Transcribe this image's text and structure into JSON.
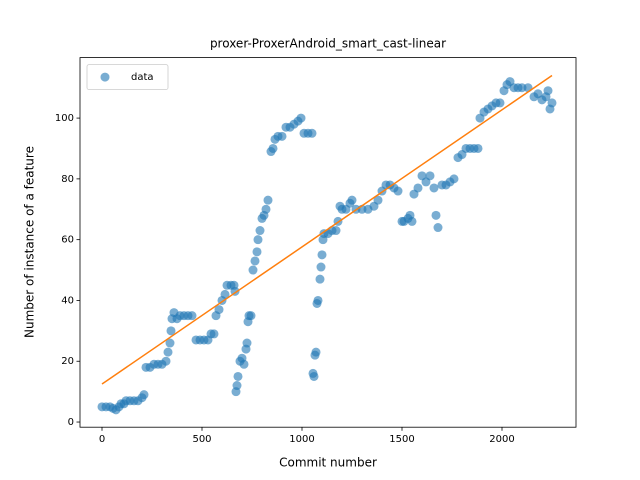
{
  "chart_data": {
    "type": "scatter",
    "title": "proxer-ProxerAndroid_smart_cast-linear",
    "xlabel": "Commit number",
    "ylabel": "Number of instance of a feature",
    "legend": "upper left",
    "xlim": [
      -110,
      2370
    ],
    "ylim": [
      -1.7,
      119.9
    ],
    "xticks": [
      0,
      500,
      1000,
      1500,
      2000
    ],
    "yticks": [
      0,
      20,
      40,
      60,
      80,
      100
    ],
    "series": [
      {
        "name": "data",
        "color": "#1f77b4",
        "x": [
          0,
          20,
          40,
          55,
          70,
          85,
          95,
          110,
          120,
          140,
          160,
          180,
          200,
          210,
          220,
          240,
          260,
          280,
          300,
          320,
          330,
          340,
          345,
          350,
          360,
          375,
          390,
          410,
          430,
          450,
          470,
          490,
          510,
          530,
          545,
          560,
          570,
          585,
          600,
          615,
          625,
          645,
          660,
          665,
          670,
          675,
          680,
          690,
          700,
          710,
          720,
          725,
          730,
          735,
          745,
          755,
          765,
          775,
          780,
          790,
          800,
          810,
          820,
          830,
          845,
          855,
          865,
          880,
          900,
          920,
          940,
          960,
          980,
          995,
          1010,
          1030,
          1050,
          1055,
          1060,
          1065,
          1070,
          1075,
          1080,
          1090,
          1095,
          1100,
          1105,
          1110,
          1130,
          1150,
          1170,
          1180,
          1190,
          1200,
          1220,
          1240,
          1250,
          1270,
          1300,
          1330,
          1360,
          1380,
          1400,
          1420,
          1440,
          1460,
          1480,
          1500,
          1510,
          1530,
          1540,
          1550,
          1560,
          1580,
          1600,
          1620,
          1640,
          1660,
          1670,
          1680,
          1700,
          1720,
          1740,
          1760,
          1780,
          1800,
          1820,
          1840,
          1860,
          1880,
          1890,
          1910,
          1930,
          1950,
          1970,
          1990,
          2010,
          2025,
          2040,
          2060,
          2080,
          2100,
          2130,
          2160,
          2180,
          2200,
          2220,
          2230,
          2240,
          2250
        ],
        "values": [
          5,
          5,
          5,
          4.5,
          4,
          5,
          6,
          6,
          7,
          7,
          7,
          7,
          8,
          9,
          18,
          18,
          19,
          19,
          19,
          20,
          23,
          26,
          30,
          34,
          36,
          34,
          35,
          35,
          35,
          35,
          27,
          27,
          27,
          27,
          29,
          29,
          35,
          37,
          40,
          42,
          45,
          45,
          45,
          43,
          10,
          12,
          15,
          20,
          21,
          19,
          24,
          26,
          33,
          35,
          35,
          50,
          53,
          56,
          60,
          63,
          67,
          68,
          70,
          73,
          89,
          90,
          93,
          94,
          94,
          97,
          97,
          98,
          99,
          100,
          95,
          95,
          95,
          16,
          15,
          22,
          23,
          39,
          40,
          47,
          51,
          55,
          60,
          62,
          62,
          63,
          63,
          66,
          71,
          70,
          70,
          72,
          73,
          70,
          70,
          70,
          71,
          73,
          76,
          78,
          78,
          77,
          76,
          66,
          66,
          67,
          68,
          66,
          75,
          77,
          81,
          79,
          81,
          77,
          68,
          64,
          78,
          78,
          79,
          80,
          87,
          88,
          90,
          90,
          90,
          90,
          100,
          102,
          103,
          104,
          105,
          105,
          109,
          111,
          112,
          110,
          110,
          110,
          110,
          107,
          108,
          106,
          107,
          109,
          103,
          105
        ]
      }
    ],
    "lines": [
      {
        "color": "#ff7f0e",
        "x": [
          0,
          2250
        ],
        "values": [
          12.5,
          114
        ]
      }
    ]
  }
}
